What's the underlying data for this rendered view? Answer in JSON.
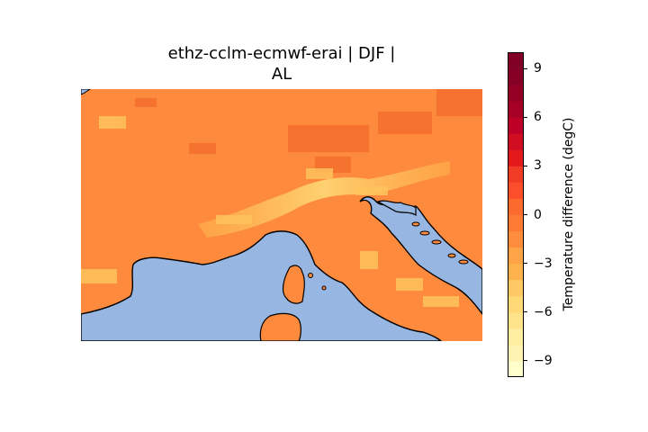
{
  "title_line1": "ethz-cclm-ecmwf-erai | DJF |",
  "title_line2": "AL",
  "colorbar": {
    "label": "Temperature difference (degC)",
    "ticks": [
      {
        "text": "9",
        "value": 9
      },
      {
        "text": "6",
        "value": 6
      },
      {
        "text": "3",
        "value": 3
      },
      {
        "text": "0",
        "value": 0
      },
      {
        "text": "−3",
        "value": -3
      },
      {
        "text": "−6",
        "value": -6
      },
      {
        "text": "−9",
        "value": -9
      }
    ],
    "range": [
      -10,
      10
    ],
    "colormap": "YlOrRd",
    "levels": 20
  },
  "colors": {
    "sea": "#97b6e1",
    "land_base": "#fd8a3d",
    "alps_cool": "#fec35c",
    "coastline": "#000000"
  }
}
